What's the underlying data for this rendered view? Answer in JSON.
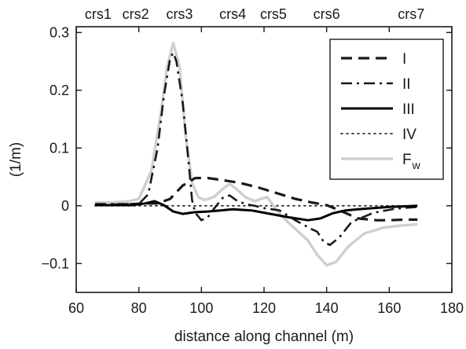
{
  "chart_data": {
    "type": "line",
    "xlabel": "distance along channel (m)",
    "ylabel": "(1/m)",
    "xlim": [
      60,
      180
    ],
    "ylim": [
      -0.15,
      0.31
    ],
    "x_ticks": [
      60,
      80,
      100,
      120,
      140,
      160,
      180
    ],
    "x_tick_labels": [
      "60",
      "80",
      "100",
      "120",
      "140",
      "160",
      "180"
    ],
    "y_ticks": [
      -0.1,
      0,
      0.1,
      0.2,
      0.3
    ],
    "y_tick_labels": [
      "−0.1",
      "0",
      "0.1",
      "0.2",
      "0.3"
    ],
    "top_markers": [
      {
        "label": "crs1",
        "x": 67
      },
      {
        "label": "crs2",
        "x": 79
      },
      {
        "label": "crs3",
        "x": 93
      },
      {
        "label": "crs4",
        "x": 110
      },
      {
        "label": "crs5",
        "x": 123
      },
      {
        "label": "crs6",
        "x": 140
      },
      {
        "label": "crs7",
        "x": 167
      }
    ],
    "zero_line": "dotted",
    "legend_position": "top-right",
    "series": [
      {
        "name": "I",
        "style": "dashed",
        "color": "#1a1a1a",
        "points": [
          [
            66,
            0.002
          ],
          [
            75,
            0.002
          ],
          [
            82,
            0.004
          ],
          [
            86,
            0.004
          ],
          [
            90,
            0.012
          ],
          [
            94,
            0.035
          ],
          [
            98,
            0.048
          ],
          [
            102,
            0.048
          ],
          [
            106,
            0.045
          ],
          [
            112,
            0.04
          ],
          [
            118,
            0.032
          ],
          [
            124,
            0.022
          ],
          [
            130,
            0.012
          ],
          [
            135,
            0.006
          ],
          [
            140,
            0.001
          ],
          [
            145,
            -0.01
          ],
          [
            150,
            -0.022
          ],
          [
            156,
            -0.025
          ],
          [
            160,
            -0.025
          ],
          [
            165,
            -0.024
          ],
          [
            169,
            -0.024
          ]
        ]
      },
      {
        "name": "II",
        "style": "dashdot",
        "color": "#1a1a1a",
        "points": [
          [
            66,
            0.003
          ],
          [
            75,
            0.003
          ],
          [
            80,
            0.003
          ],
          [
            83,
            0.02
          ],
          [
            86,
            0.1
          ],
          [
            88,
            0.19
          ],
          [
            90,
            0.255
          ],
          [
            91,
            0.265
          ],
          [
            92,
            0.25
          ],
          [
            94,
            0.18
          ],
          [
            96,
            0.07
          ],
          [
            97,
            0.01
          ],
          [
            98,
            -0.012
          ],
          [
            100,
            -0.025
          ],
          [
            102,
            -0.02
          ],
          [
            104,
            -0.005
          ],
          [
            107,
            0.015
          ],
          [
            109,
            0.018
          ],
          [
            111,
            0.01
          ],
          [
            114,
            0.003
          ],
          [
            117,
            0.0
          ],
          [
            120,
            -0.004
          ],
          [
            125,
            -0.008
          ],
          [
            130,
            -0.025
          ],
          [
            135,
            -0.04
          ],
          [
            137,
            -0.045
          ],
          [
            139,
            -0.062
          ],
          [
            141,
            -0.068
          ],
          [
            144,
            -0.055
          ],
          [
            148,
            -0.028
          ],
          [
            155,
            -0.012
          ],
          [
            162,
            -0.005
          ],
          [
            169,
            -0.002
          ]
        ]
      },
      {
        "name": "III",
        "style": "solid",
        "color": "#000000",
        "points": [
          [
            66,
            0.001
          ],
          [
            72,
            0.001
          ],
          [
            78,
            0.001
          ],
          [
            82,
            0.004
          ],
          [
            85,
            0.008
          ],
          [
            88,
            0.001
          ],
          [
            91,
            -0.01
          ],
          [
            94,
            -0.014
          ],
          [
            98,
            -0.011
          ],
          [
            102,
            -0.01
          ],
          [
            106,
            -0.008
          ],
          [
            110,
            -0.006
          ],
          [
            116,
            -0.008
          ],
          [
            122,
            -0.014
          ],
          [
            128,
            -0.02
          ],
          [
            134,
            -0.025
          ],
          [
            138,
            -0.022
          ],
          [
            142,
            -0.013
          ],
          [
            146,
            -0.008
          ],
          [
            150,
            -0.006
          ],
          [
            155,
            -0.004
          ],
          [
            160,
            -0.002
          ],
          [
            165,
            -0.001
          ],
          [
            169,
            0.0
          ]
        ]
      },
      {
        "name": "IV",
        "style": "dotted",
        "color": "#333333",
        "points": [
          [
            66,
            0.0
          ],
          [
            169,
            0.0
          ]
        ]
      },
      {
        "name": "F",
        "name_subscript": "w",
        "style": "solid",
        "color": "#cfcfcf",
        "points": [
          [
            66,
            0.006
          ],
          [
            72,
            0.006
          ],
          [
            77,
            0.008
          ],
          [
            80,
            0.012
          ],
          [
            84,
            0.06
          ],
          [
            87,
            0.16
          ],
          [
            89,
            0.24
          ],
          [
            91,
            0.282
          ],
          [
            93,
            0.24
          ],
          [
            95,
            0.12
          ],
          [
            97,
            0.04
          ],
          [
            99,
            0.015
          ],
          [
            101,
            0.01
          ],
          [
            104,
            0.015
          ],
          [
            107,
            0.03
          ],
          [
            109,
            0.038
          ],
          [
            111,
            0.03
          ],
          [
            114,
            0.015
          ],
          [
            117,
            0.008
          ],
          [
            119,
            0.012
          ],
          [
            121,
            0.015
          ],
          [
            123,
            0.0
          ],
          [
            126,
            -0.02
          ],
          [
            130,
            -0.04
          ],
          [
            134,
            -0.06
          ],
          [
            137,
            -0.085
          ],
          [
            140,
            -0.103
          ],
          [
            143,
            -0.097
          ],
          [
            147,
            -0.07
          ],
          [
            152,
            -0.048
          ],
          [
            158,
            -0.038
          ],
          [
            164,
            -0.034
          ],
          [
            169,
            -0.032
          ]
        ]
      }
    ]
  }
}
